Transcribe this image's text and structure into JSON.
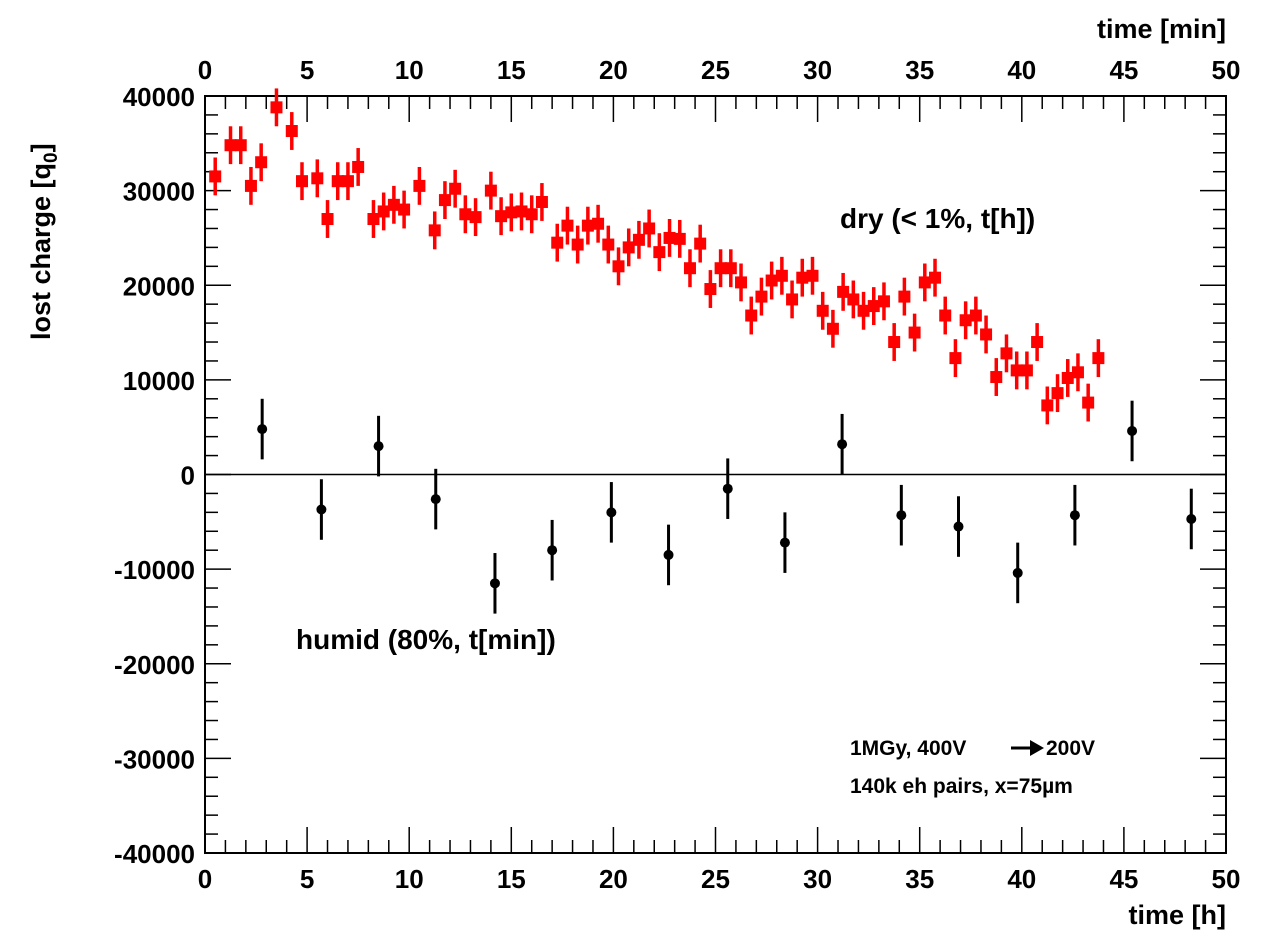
{
  "chart_data": {
    "type": "scatter",
    "x_bottom": {
      "label": "time [h]",
      "range": [
        0,
        50
      ],
      "ticks": [
        "0",
        "5",
        "10",
        "15",
        "20",
        "25",
        "30",
        "35",
        "40",
        "45",
        "50"
      ]
    },
    "x_top": {
      "label": "time [min]",
      "range": [
        0,
        50
      ],
      "ticks": [
        "0",
        "5",
        "10",
        "15",
        "20",
        "25",
        "30",
        "35",
        "40",
        "45",
        "50"
      ]
    },
    "y": {
      "label_main": "lost charge [q",
      "label_sub": "0",
      "label_end": "]",
      "range": [
        -40000,
        40000
      ],
      "ticks": [
        "40000",
        "30000",
        "20000",
        "10000",
        "0",
        "-10000",
        "-20000",
        "-30000",
        "-40000"
      ]
    },
    "grid": false,
    "series": [
      {
        "name": "dry (< 1%, t[h])",
        "axis": "bottom",
        "color": "#ff0000",
        "marker": "square",
        "yerr": 2000,
        "points": [
          [
            0.5,
            31500
          ],
          [
            1.25,
            34800
          ],
          [
            1.75,
            34800
          ],
          [
            2.25,
            30500
          ],
          [
            2.75,
            33000
          ],
          [
            3.5,
            38800
          ],
          [
            4.25,
            36300
          ],
          [
            4.75,
            31000
          ],
          [
            5.5,
            31300
          ],
          [
            6.0,
            27000
          ],
          [
            6.5,
            31000
          ],
          [
            7.0,
            31000
          ],
          [
            7.5,
            32500
          ],
          [
            8.25,
            27000
          ],
          [
            8.75,
            27800
          ],
          [
            9.25,
            28500
          ],
          [
            9.75,
            28000
          ],
          [
            10.5,
            30500
          ],
          [
            11.25,
            25800
          ],
          [
            11.75,
            29000
          ],
          [
            12.25,
            30200
          ],
          [
            12.75,
            27500
          ],
          [
            13.25,
            27200
          ],
          [
            14.0,
            30000
          ],
          [
            14.5,
            27300
          ],
          [
            15.0,
            27700
          ],
          [
            15.5,
            27800
          ],
          [
            16.0,
            27500
          ],
          [
            16.5,
            28800
          ],
          [
            17.25,
            24500
          ],
          [
            17.75,
            26300
          ],
          [
            18.25,
            24300
          ],
          [
            18.75,
            26300
          ],
          [
            19.25,
            26500
          ],
          [
            19.75,
            24300
          ],
          [
            20.25,
            22000
          ],
          [
            20.75,
            24000
          ],
          [
            21.25,
            24800
          ],
          [
            21.75,
            26000
          ],
          [
            22.25,
            23500
          ],
          [
            22.75,
            25000
          ],
          [
            23.25,
            24900
          ],
          [
            23.75,
            21800
          ],
          [
            24.25,
            24400
          ],
          [
            24.75,
            19600
          ],
          [
            25.25,
            21800
          ],
          [
            25.75,
            21800
          ],
          [
            26.25,
            20300
          ],
          [
            26.75,
            16800
          ],
          [
            27.25,
            18800
          ],
          [
            27.75,
            20500
          ],
          [
            28.25,
            21000
          ],
          [
            28.75,
            18500
          ],
          [
            29.25,
            20800
          ],
          [
            29.75,
            21000
          ],
          [
            30.25,
            17300
          ],
          [
            30.75,
            15400
          ],
          [
            31.25,
            19300
          ],
          [
            31.75,
            18500
          ],
          [
            32.25,
            17300
          ],
          [
            32.75,
            17800
          ],
          [
            33.25,
            18300
          ],
          [
            33.75,
            14000
          ],
          [
            34.25,
            18800
          ],
          [
            34.75,
            15000
          ],
          [
            35.25,
            20300
          ],
          [
            35.75,
            20800
          ],
          [
            36.25,
            16800
          ],
          [
            36.75,
            12300
          ],
          [
            37.25,
            16300
          ],
          [
            37.75,
            16800
          ],
          [
            38.25,
            14800
          ],
          [
            38.75,
            10300
          ],
          [
            39.25,
            12800
          ],
          [
            39.75,
            11000
          ],
          [
            40.25,
            11000
          ],
          [
            40.75,
            14000
          ],
          [
            41.25,
            7300
          ],
          [
            41.75,
            8600
          ],
          [
            42.25,
            10200
          ],
          [
            42.75,
            10800
          ],
          [
            43.25,
            7600
          ],
          [
            43.75,
            12300
          ]
        ]
      },
      {
        "name": "humid (80%, t[min])",
        "axis": "top",
        "color": "#000000",
        "marker": "circle",
        "yerr": 3200,
        "points": [
          [
            2.8,
            4800
          ],
          [
            5.7,
            -3700
          ],
          [
            8.5,
            3000
          ],
          [
            11.3,
            -2600
          ],
          [
            14.2,
            -11500
          ],
          [
            17.0,
            -8000
          ],
          [
            19.9,
            -4000
          ],
          [
            22.7,
            -8500
          ],
          [
            25.6,
            -1500
          ],
          [
            28.4,
            -7200
          ],
          [
            31.2,
            3200
          ],
          [
            34.1,
            -4300
          ],
          [
            36.9,
            -5500
          ],
          [
            39.8,
            -10400
          ],
          [
            42.6,
            -4300
          ],
          [
            45.4,
            4600
          ],
          [
            48.3,
            -4700
          ]
        ]
      }
    ],
    "annotations": {
      "dry_label": "dry (< 1%, t[h])",
      "humid_label": "humid (80%, t[min])",
      "dose_line_a": "1MGy, 400V",
      "dose_line_b": "200V",
      "pairs_line": "140k eh pairs,  x=75",
      "pairs_unit": "µm"
    }
  }
}
